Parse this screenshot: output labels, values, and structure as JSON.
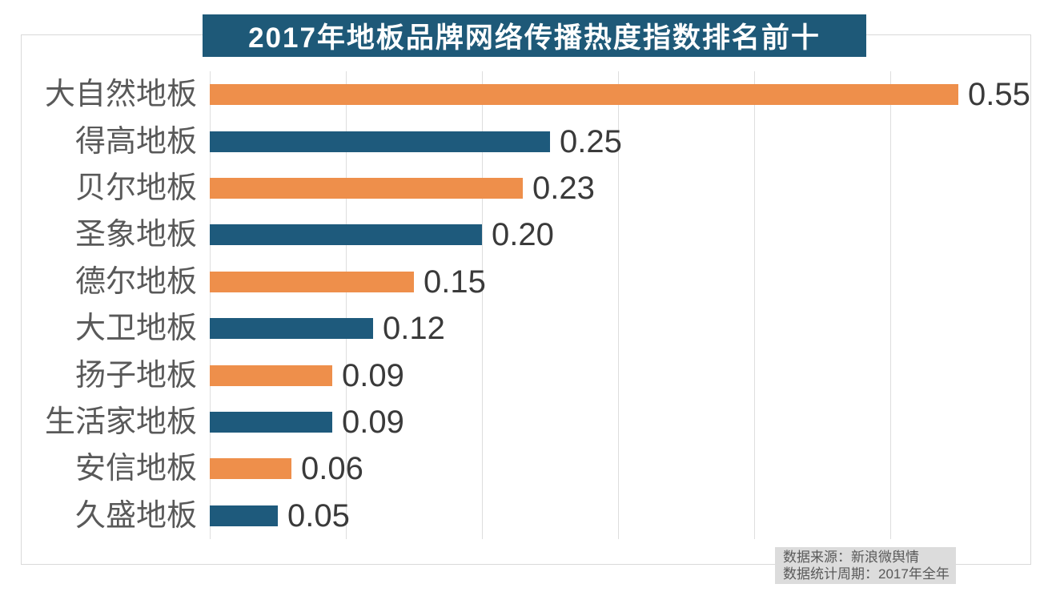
{
  "title_banner": {
    "text": "2017年地板品牌网络传播热度指数排名前十"
  },
  "source_note": {
    "line1": "数据来源：新浪微舆情",
    "line2": "数据统计周期：2017年全年"
  },
  "colors": {
    "title_bg": "#1E5978",
    "bar_orange": "#EE8F4B",
    "bar_blue": "#1E5A7C",
    "gridline": "#DEDEDE",
    "frame_border": "#D9D9D9",
    "category_label": "#595959",
    "value_label": "#3A3A3A",
    "source_bg": "#DCDCDC",
    "source_text": "#595959"
  },
  "chart_data": {
    "type": "bar",
    "orientation": "horizontal",
    "title": "2017年地板品牌网络传播热度指数排名前十",
    "categories": [
      "大自然地板",
      "得高地板",
      "贝尔地板",
      "圣象地板",
      "德尔地板",
      "大卫地板",
      "扬子地板",
      "生活家地板",
      "安信地板",
      "久盛地板"
    ],
    "values": [
      0.55,
      0.25,
      0.23,
      0.2,
      0.15,
      0.12,
      0.09,
      0.09,
      0.06,
      0.05
    ],
    "value_labels": [
      "0.55",
      "0.25",
      "0.23",
      "0.20",
      "0.15",
      "0.12",
      "0.09",
      "0.09",
      "0.06",
      "0.05"
    ],
    "series_colors_alternating": [
      "#EE8F4B",
      "#1E5A7C"
    ],
    "xlim": [
      0,
      0.6
    ],
    "gridline_interval": 0.1,
    "grid": true,
    "legend_position": "none",
    "value_labels_shown": true,
    "axis_tick_labels_shown": false
  }
}
